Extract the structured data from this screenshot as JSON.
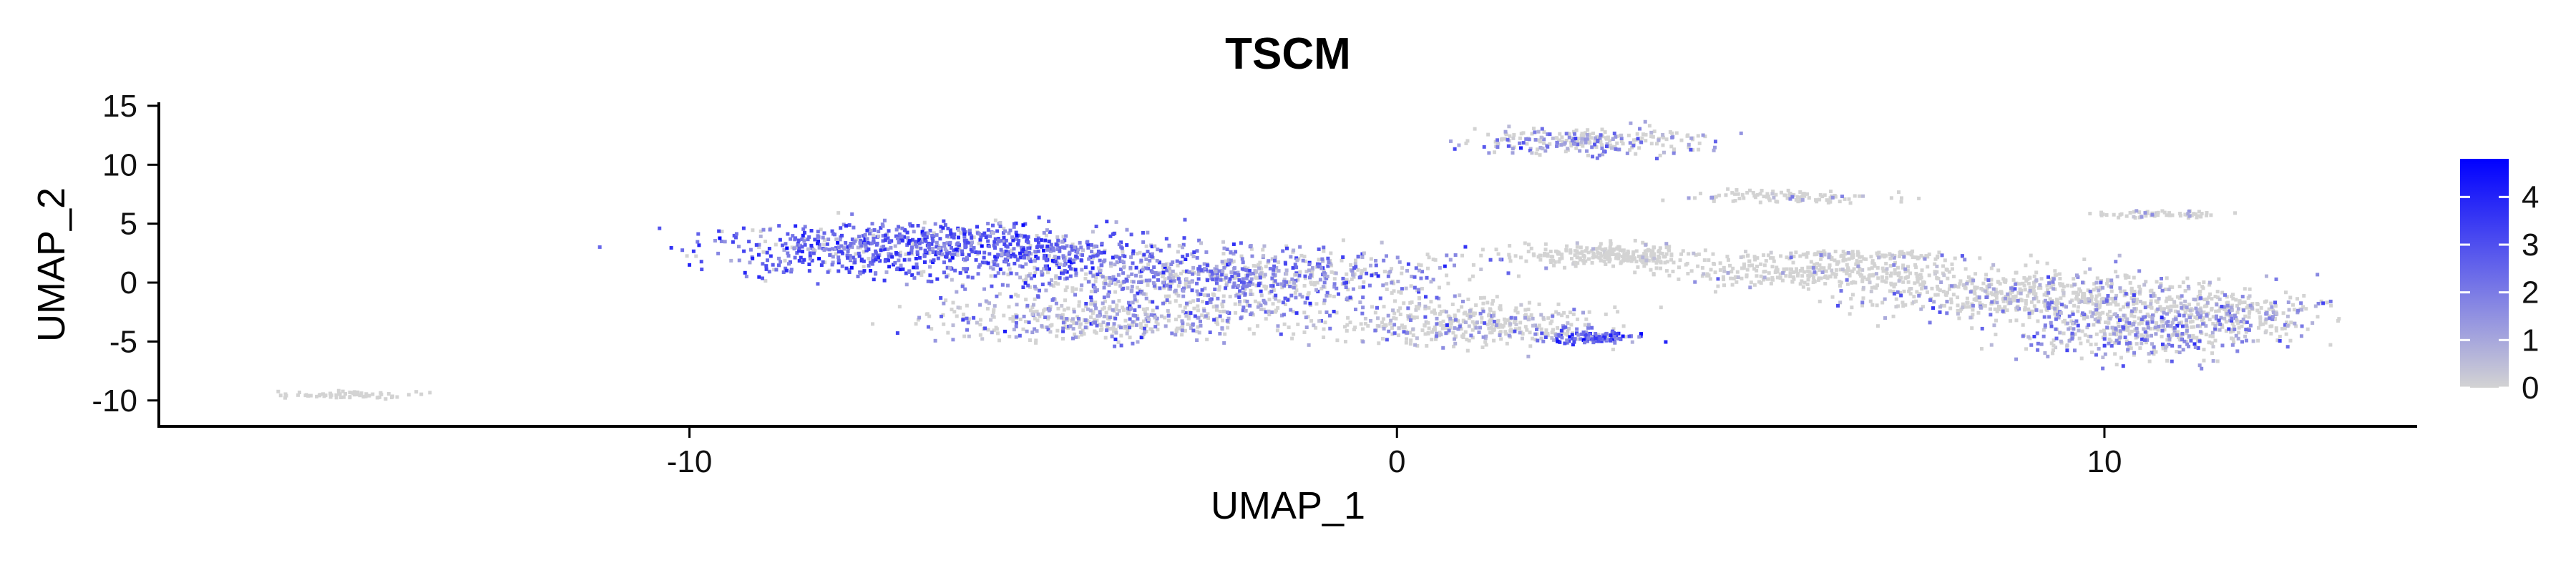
{
  "chart_data": {
    "type": "scatter",
    "title": "TSCM",
    "xlabel": "UMAP_1",
    "ylabel": "UMAP_2",
    "xlim": [
      -17.5,
      14.4
    ],
    "ylim": [
      -12.2,
      15.3
    ],
    "xticks": [
      -10,
      0,
      10
    ],
    "xtick_labels": [
      "-10",
      "0",
      "10"
    ],
    "yticks": [
      15,
      10,
      5,
      0,
      -5,
      -10
    ],
    "ytick_labels": [
      "15",
      "10",
      "5",
      "0",
      "-5",
      "-10"
    ],
    "grid": false,
    "legend": {
      "placement": "right",
      "type": "colorbar",
      "ticks": [
        4,
        3,
        2,
        1,
        0
      ],
      "tick_labels": [
        "4",
        "3",
        "2",
        "1",
        "0"
      ],
      "range": [
        0,
        4.8
      ],
      "color_low": "#d3d3d3",
      "color_high": "#0000ff"
    },
    "clusters": [
      {
        "center": [
          -6.5,
          2.8
        ],
        "spread": [
          3.0,
          2.2
        ],
        "n": 900,
        "mean_expr": 2.6
      },
      {
        "center": [
          -2.5,
          0.5
        ],
        "spread": [
          3.2,
          2.6
        ],
        "n": 900,
        "mean_expr": 1.8
      },
      {
        "center": [
          -4.0,
          -3.2
        ],
        "spread": [
          2.6,
          1.8
        ],
        "n": 450,
        "mean_expr": 1.4
      },
      {
        "center": [
          1.0,
          -3.5
        ],
        "spread": [
          2.0,
          2.0
        ],
        "n": 400,
        "mean_expr": 0.9
      },
      {
        "center": [
          2.8,
          -4.6
        ],
        "spread": [
          0.7,
          0.6
        ],
        "n": 120,
        "mean_expr": 2.8
      },
      {
        "center": [
          2.7,
          12.0
        ],
        "spread": [
          1.6,
          1.1
        ],
        "n": 260,
        "mean_expr": 1.3
      },
      {
        "center": [
          3.0,
          2.4
        ],
        "spread": [
          1.3,
          1.0
        ],
        "n": 260,
        "mean_expr": 0.2
      },
      {
        "center": [
          6.0,
          0.8
        ],
        "spread": [
          2.0,
          1.2
        ],
        "n": 300,
        "mean_expr": 0.3
      },
      {
        "center": [
          6.5,
          2.3
        ],
        "spread": [
          1.8,
          0.4
        ],
        "n": 120,
        "mean_expr": 0.6
      },
      {
        "center": [
          5.5,
          7.3
        ],
        "spread": [
          1.5,
          0.6
        ],
        "n": 100,
        "mean_expr": 0.5
      },
      {
        "center": [
          9.0,
          -1.0
        ],
        "spread": [
          2.4,
          2.2
        ],
        "n": 600,
        "mean_expr": 0.8
      },
      {
        "center": [
          10.5,
          -4.0
        ],
        "spread": [
          1.8,
          2.6
        ],
        "n": 450,
        "mean_expr": 1.4
      },
      {
        "center": [
          11.8,
          -2.5
        ],
        "spread": [
          1.3,
          2.2
        ],
        "n": 260,
        "mean_expr": 1.0
      },
      {
        "center": [
          10.8,
          5.8
        ],
        "spread": [
          1.0,
          0.3
        ],
        "n": 60,
        "mean_expr": 0.8
      },
      {
        "center": [
          -14.8,
          -9.5
        ],
        "spread": [
          1.1,
          0.3
        ],
        "n": 60,
        "mean_expr": 0.0
      }
    ]
  }
}
